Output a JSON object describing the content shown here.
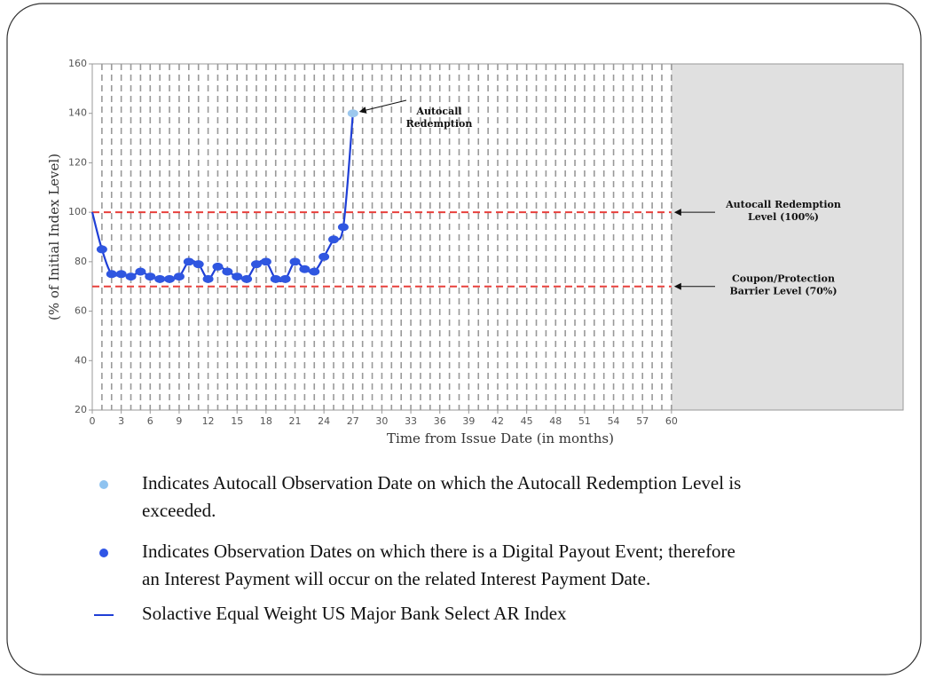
{
  "chart_data": {
    "type": "line",
    "xlabel": "Time from Issue Date (in months)",
    "ylabel": "(% of Initial Index Level)",
    "xlim": [
      0,
      84
    ],
    "ylim": [
      20,
      160
    ],
    "xticks": [
      0,
      3,
      6,
      9,
      12,
      15,
      18,
      21,
      24,
      27,
      30,
      33,
      36,
      39,
      42,
      45,
      48,
      51,
      54,
      57,
      60
    ],
    "yticks": [
      20,
      40,
      60,
      80,
      100,
      120,
      140,
      160
    ],
    "xgrid": [
      1,
      2,
      3,
      4,
      5,
      6,
      7,
      8,
      9,
      10,
      11,
      12,
      13,
      14,
      15,
      16,
      17,
      18,
      19,
      20,
      21,
      22,
      23,
      24,
      25,
      26,
      27,
      28,
      29,
      30,
      31,
      32,
      33,
      34,
      35,
      36,
      37,
      38,
      39,
      40,
      41,
      42,
      43,
      44,
      45,
      46,
      47,
      48,
      49,
      50,
      51,
      52,
      53,
      54,
      55,
      56,
      57,
      58,
      59,
      60
    ],
    "shaded_region": [
      60,
      84
    ],
    "x": [
      0,
      1,
      2,
      3,
      4,
      5,
      6,
      7,
      8,
      9,
      10,
      11,
      12,
      13,
      14,
      15,
      16,
      17,
      18,
      19,
      20,
      21,
      22,
      23,
      24,
      25,
      26,
      27
    ],
    "series": [
      {
        "name": "Solactive Equal Weight US Major Bank Select AR Index",
        "color": "#1f3fd6",
        "values": [
          100,
          85,
          75,
          75,
          74,
          76,
          74,
          73,
          73,
          74,
          80,
          79,
          73,
          78,
          76,
          74,
          73,
          79,
          80,
          73,
          73,
          80,
          77,
          76,
          82,
          89,
          94,
          140
        ],
        "marker_colors": [
          null,
          "#2f56e0",
          "#2f56e0",
          "#2f56e0",
          "#2f56e0",
          "#2f56e0",
          "#2f56e0",
          "#2f56e0",
          "#2f56e0",
          "#2f56e0",
          "#2f56e0",
          "#2f56e0",
          "#2f56e0",
          "#2f56e0",
          "#2f56e0",
          "#2f56e0",
          "#2f56e0",
          "#2f56e0",
          "#2f56e0",
          "#2f56e0",
          "#2f56e0",
          "#2f56e0",
          "#2f56e0",
          "#2f56e0",
          "#2f56e0",
          "#2f56e0",
          "#2f56e0",
          "#9cc8ee"
        ]
      }
    ],
    "reference_lines": [
      {
        "value": 100,
        "color": "#e8403c",
        "lines": [
          "Autocall Redemption",
          "Level (100%)"
        ]
      },
      {
        "value": 70,
        "color": "#e8403c",
        "lines": [
          "Coupon/Protection",
          "Barrier Level (70%)"
        ]
      }
    ],
    "annotation": {
      "lines": [
        "Autocall",
        "Redemption"
      ]
    },
    "legend": [
      {
        "marker": "dot",
        "color": "#8fc3f0",
        "lines": [
          "Indicates Autocall Observation Date on which the Autocall Redemption Level is",
          "exceeded."
        ]
      },
      {
        "marker": "dot",
        "color": "#2f55e6",
        "lines": [
          "Indicates Observation Dates on which there is a Digital Payout Event; therefore",
          "an Interest Payment will occur on the related Interest Payment Date."
        ]
      },
      {
        "marker": "line",
        "color": "#1f3fd6"
      }
    ]
  }
}
